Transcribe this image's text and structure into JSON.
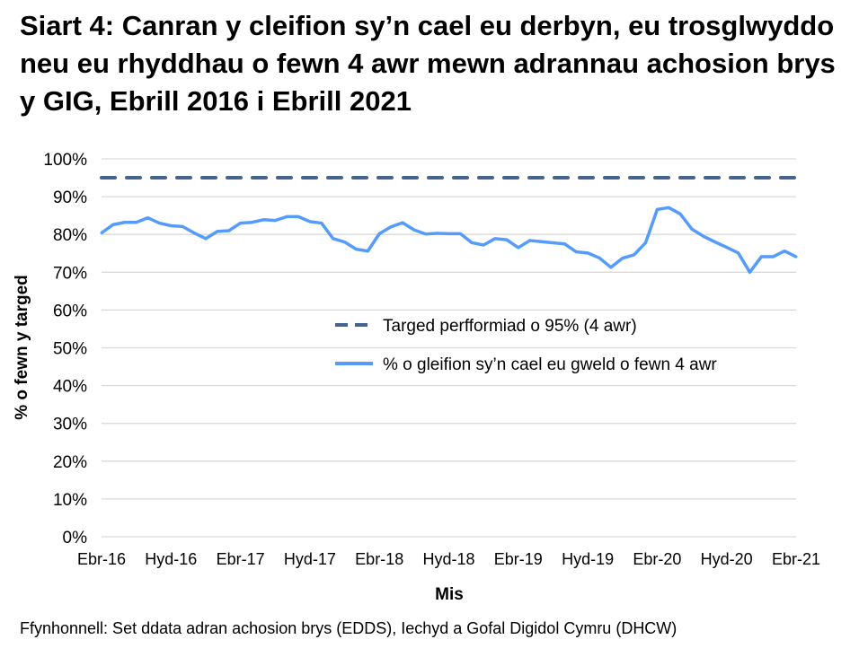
{
  "title": "Siart 4: Canran y cleifion sy’n cael eu derbyn, eu trosglwyddo neu eu rhyddhau o fewn 4 awr mewn adrannau achosion brys y GIG, Ebrill 2016 i Ebrill 2021",
  "source": "Ffynhonnell: Set ddata adran achosion brys (EDDS), Iechyd a Gofal Digidol Cymru (DHCW)",
  "chart_data": {
    "type": "line",
    "xlabel": "Mis",
    "ylabel": "% o fewn y targed",
    "ylim": [
      0,
      100
    ],
    "yticks": [
      "0%",
      "10%",
      "20%",
      "30%",
      "40%",
      "50%",
      "60%",
      "70%",
      "80%",
      "90%",
      "100%"
    ],
    "xtick_labels": [
      "Ebr-16",
      "Hyd-16",
      "Ebr-17",
      "Hyd-17",
      "Ebr-18",
      "Hyd-18",
      "Ebr-19",
      "Hyd-19",
      "Ebr-20",
      "Hyd-20",
      "Ebr-21"
    ],
    "xtick_every_months": 6,
    "grid": "horizontal",
    "legend_position": "center-right",
    "series": [
      {
        "name": "Targed perfformiad o 95% (4 awr)",
        "style": "dashed",
        "color": "#44648F",
        "constant": 95
      },
      {
        "name": "% o gleifion sy’n cael eu gweld o fewn 4 awr",
        "style": "solid",
        "color": "#559CFA",
        "values": [
          80.4,
          82.6,
          83.2,
          83.2,
          84.4,
          83.0,
          82.3,
          82.1,
          80.4,
          78.9,
          80.8,
          81.0,
          83.0,
          83.2,
          83.9,
          83.7,
          84.7,
          84.7,
          83.4,
          83.0,
          78.9,
          78.0,
          76.1,
          75.6,
          80.2,
          82.0,
          83.1,
          81.2,
          80.1,
          80.3,
          80.2,
          80.2,
          77.8,
          77.2,
          78.9,
          78.6,
          76.5,
          78.4,
          78.1,
          77.8,
          77.5,
          75.4,
          75.1,
          73.8,
          71.3,
          73.7,
          74.6,
          77.8,
          86.6,
          87.1,
          85.4,
          81.4,
          79.5,
          78.0,
          76.6,
          75.1,
          70.0,
          74.1,
          74.1,
          75.6,
          74.1
        ]
      }
    ]
  }
}
